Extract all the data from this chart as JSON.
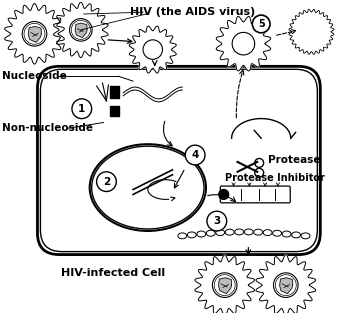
{
  "background_color": "#ffffff",
  "labels": {
    "hiv_title": "HIV (the AIDS virus)",
    "nucleoside": "Nucleoside",
    "non_nucleoside": "Non-nucleoside",
    "protease": "Protease",
    "protease_inhibitor": "Protease Inhibitor",
    "hiv_infected_cell": "HIV-infected Cell"
  }
}
